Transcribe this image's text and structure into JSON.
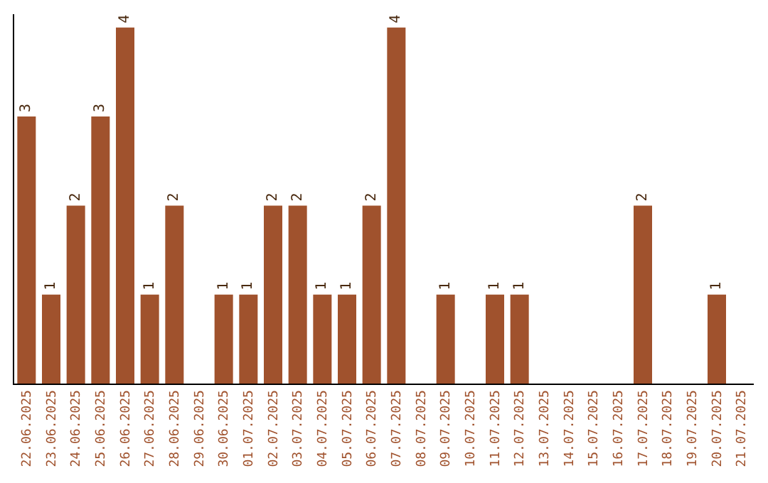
{
  "chart_data": {
    "type": "bar",
    "categories": [
      "22.06.2025",
      "23.06.2025",
      "24.06.2025",
      "25.06.2025",
      "26.06.2025",
      "27.06.2025",
      "28.06.2025",
      "29.06.2025",
      "30.06.2025",
      "01.07.2025",
      "02.07.2025",
      "03.07.2025",
      "04.07.2025",
      "05.07.2025",
      "06.07.2025",
      "07.07.2025",
      "08.07.2025",
      "09.07.2025",
      "10.07.2025",
      "11.07.2025",
      "12.07.2025",
      "13.07.2025",
      "14.07.2025",
      "15.07.2025",
      "16.07.2025",
      "17.07.2025",
      "18.07.2025",
      "19.07.2025",
      "20.07.2025",
      "21.07.2025"
    ],
    "values": [
      3,
      1,
      2,
      3,
      4,
      1,
      2,
      0,
      1,
      1,
      2,
      2,
      1,
      1,
      2,
      4,
      0,
      1,
      0,
      1,
      1,
      0,
      0,
      0,
      0,
      2,
      0,
      0,
      1,
      0
    ],
    "value_labels": [
      "3",
      "1",
      "2",
      "3",
      "4",
      "1",
      "2",
      null,
      "1",
      "1",
      "2",
      "2",
      "1",
      "1",
      "2",
      "4",
      null,
      "1",
      null,
      "1",
      "1",
      null,
      null,
      null,
      null,
      "2",
      null,
      null,
      "1",
      null
    ],
    "color": "#a0522d",
    "ylim": [
      0,
      4.15
    ],
    "tick_labels": "x"
  }
}
